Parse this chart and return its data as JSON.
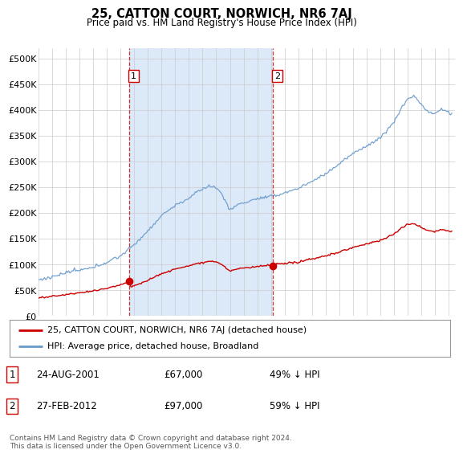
{
  "title": "25, CATTON COURT, NORWICH, NR6 7AJ",
  "subtitle": "Price paid vs. HM Land Registry's House Price Index (HPI)",
  "yticks": [
    0,
    50000,
    100000,
    150000,
    200000,
    250000,
    300000,
    350000,
    400000,
    450000,
    500000
  ],
  "ytick_labels": [
    "£0",
    "£50K",
    "£100K",
    "£150K",
    "£200K",
    "£250K",
    "£300K",
    "£350K",
    "£400K",
    "£450K",
    "£500K"
  ],
  "xlim_start": 1995.0,
  "xlim_end": 2025.5,
  "ylim": [
    0,
    520000
  ],
  "bg_color": "#ffffff",
  "shade_color": "#dce9f8",
  "grid_color": "#cccccc",
  "sale1_date": 2001.645,
  "sale1_price": 67000,
  "sale2_date": 2012.164,
  "sale2_price": 97000,
  "legend_label1": "25, CATTON COURT, NORWICH, NR6 7AJ (detached house)",
  "legend_label2": "HPI: Average price, detached house, Broadland",
  "table_row1": [
    "1",
    "24-AUG-2001",
    "£67,000",
    "49% ↓ HPI"
  ],
  "table_row2": [
    "2",
    "27-FEB-2012",
    "£97,000",
    "59% ↓ HPI"
  ],
  "footnote": "Contains HM Land Registry data © Crown copyright and database right 2024.\nThis data is licensed under the Open Government Licence v3.0.",
  "line_color_property": "#cc0000",
  "line_color_hpi": "#6699cc"
}
